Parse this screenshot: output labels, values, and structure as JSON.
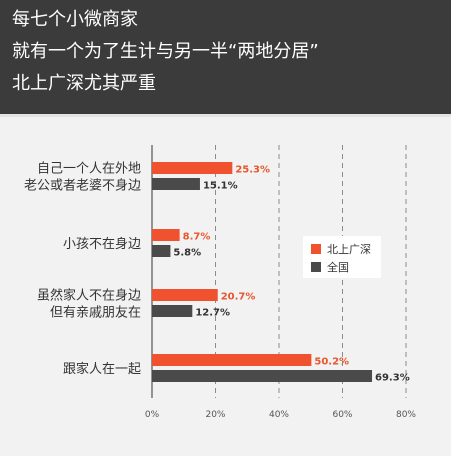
{
  "header": {
    "title_lines": [
      "每七个小微商家",
      "就有一个为了生计与另一半“两地分居”",
      "北上广深尤其严重"
    ]
  },
  "colors": {
    "header_bg": "#3c3b3b",
    "beishangguangshen": "#f0522f",
    "national": "#4a4a4a",
    "value_orange": "#e8572b",
    "value_dark": "#333333"
  },
  "chart_data": {
    "type": "bar",
    "orientation": "horizontal",
    "title": "",
    "categories": [
      [
        "自己一个人在外地",
        "老公或者老婆不身边"
      ],
      [
        "小孩不在身边"
      ],
      [
        "虽然家人不在身边",
        "但有亲戚朋友在"
      ],
      [
        "跟家人在一起"
      ]
    ],
    "series": [
      {
        "name": "北上广深",
        "color": "#f0522f",
        "values": [
          25.3,
          8.7,
          20.7,
          50.2
        ],
        "labels": [
          "25.3%",
          "8.7%",
          "20.7%",
          "50.2%"
        ]
      },
      {
        "name": "全国",
        "color": "#4a4a4a",
        "values": [
          15.1,
          5.8,
          12.7,
          69.3
        ],
        "labels": [
          "15.1%",
          "5.8%",
          "12.7%",
          "69.3%"
        ]
      }
    ],
    "xlim": [
      0,
      80
    ],
    "xticks": [
      "0%",
      "20%",
      "40%",
      "60%",
      "80%"
    ],
    "xlabel": "",
    "ylabel": "",
    "grid": "vertical-dashed",
    "legend_position": "right"
  }
}
